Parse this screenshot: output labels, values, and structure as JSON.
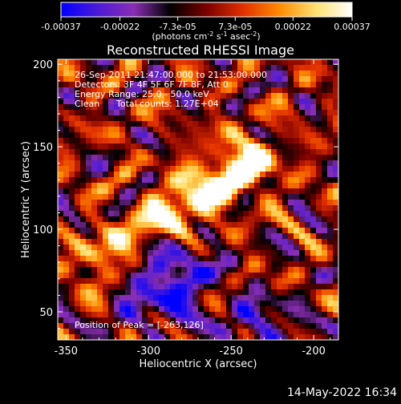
{
  "chart_data": {
    "type": "heatmap",
    "title": "Reconstructed RHESSI Image",
    "xlabel": "Heliocentric X (arcsec)",
    "ylabel": "Heliocentric Y (arcsec)",
    "xlim": [
      -355,
      -185
    ],
    "ylim": [
      33,
      203
    ],
    "x_ticks": [
      -350,
      -300,
      -250,
      -200
    ],
    "y_ticks": [
      50,
      100,
      150,
      200
    ],
    "grid": false,
    "colorbar": {
      "ticks": [
        -0.00037,
        -0.00022,
        -7.3e-05,
        7.3e-05,
        0.00022,
        0.00037
      ],
      "tick_labels": [
        "-0.00037",
        "-0.00022",
        "-7.3e-05",
        "7.3e-05",
        "0.00022",
        "0.00037"
      ],
      "unit_label": "(photons cm",
      "unit_sup1": "-2",
      "unit_mid": " s",
      "unit_sup2": "-1",
      "unit_mid2": " asec",
      "unit_sup3": "-2",
      "unit_end": ")",
      "range": [
        -0.00037,
        0.00037
      ],
      "colors": [
        "#0000ff",
        "#4b1ad6",
        "#8a2eb4",
        "#000000",
        "#7a0000",
        "#e23000",
        "#ff8a00",
        "#ffe070",
        "#ffffff"
      ]
    },
    "annotations": {
      "time": "26-Sep-2011 21:47:00.000 to 21:53:00.000",
      "detectors": "Detectors: 3F 4F 5F 6F 7F 8F, Att 0",
      "energy": "Energy Range: 25.0 - 50.0 keV",
      "clean_label": "Clean",
      "counts": "Total counts: 1.27E+04",
      "peak": "Position of Peak = [-263,126]"
    },
    "peak_position": [
      -263,
      126
    ],
    "features": {
      "bright_ridge": {
        "from": [
          -330,
          80
        ],
        "to": [
          -240,
          140
        ],
        "peak_value": 0.00037
      },
      "negative_patch": {
        "center": [
          -290,
          70
        ],
        "value": -0.00037
      }
    }
  },
  "footer": {
    "date": "14-May-2022 16:34"
  }
}
